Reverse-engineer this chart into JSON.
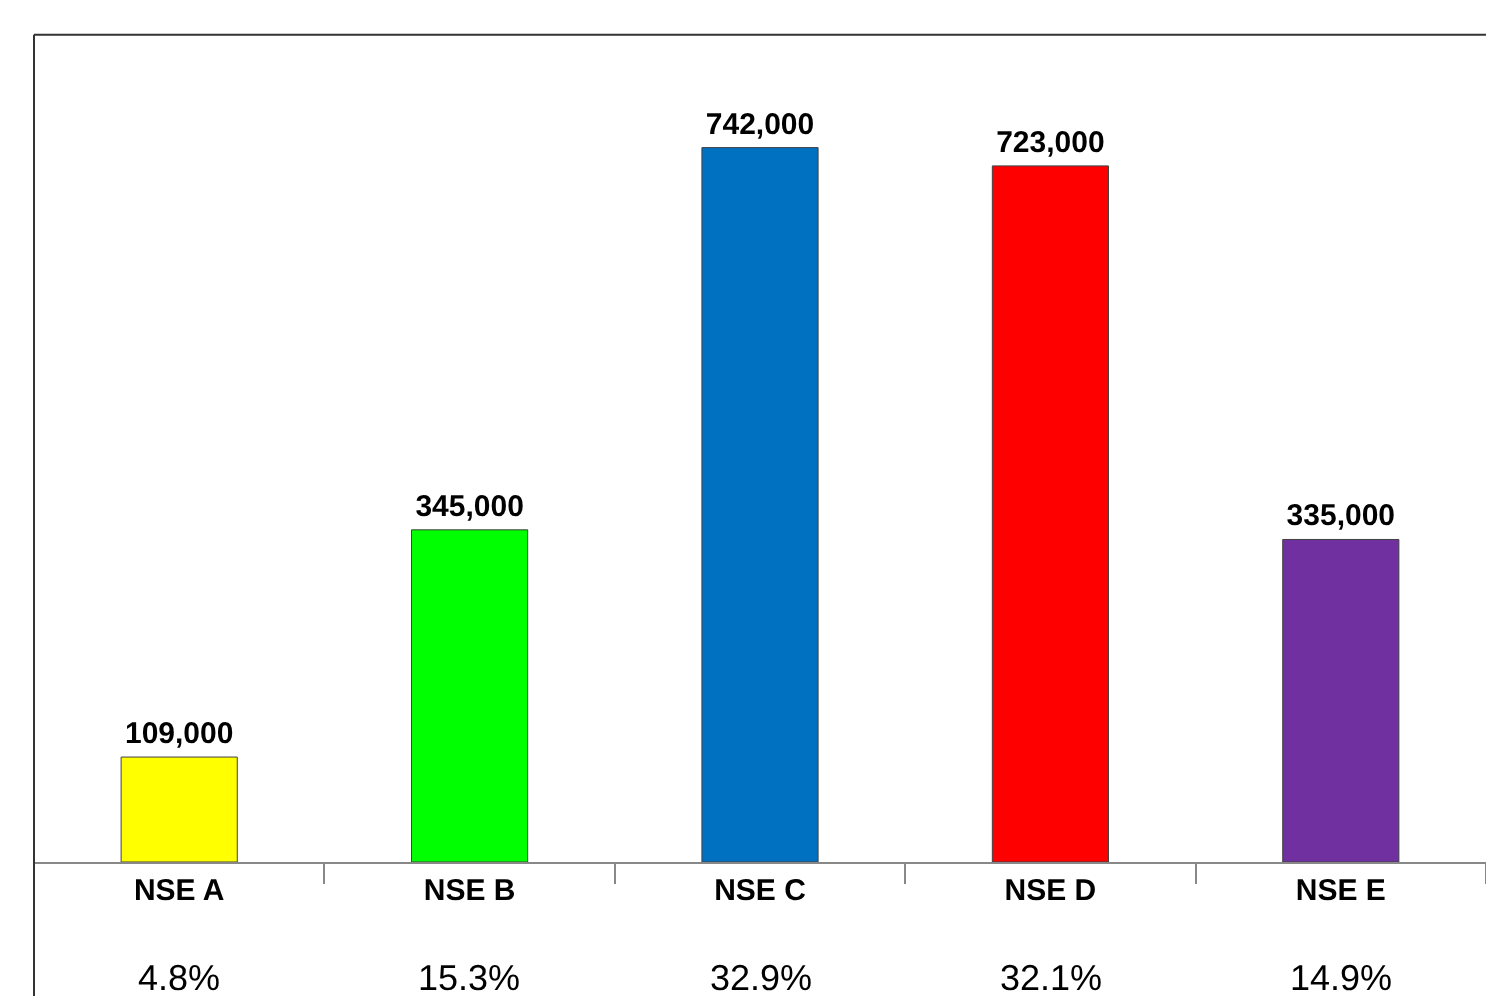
{
  "chart_data": {
    "type": "bar",
    "categories": [
      "NSE A",
      "NSE B",
      "NSE C",
      "NSE D",
      "NSE E"
    ],
    "values": [
      109000,
      345000,
      742000,
      723000,
      335000
    ],
    "colors": [
      "#ffff00",
      "#00ff00",
      "#0070c0",
      "#ff0000",
      "#7030a0"
    ],
    "value_labels": [
      "109,000",
      "345,000",
      "742,000",
      "723,000",
      "335,000"
    ],
    "annotations": [
      "4.8%",
      "15.3%",
      "32.9%",
      "32.1%",
      "14.9%"
    ]
  }
}
